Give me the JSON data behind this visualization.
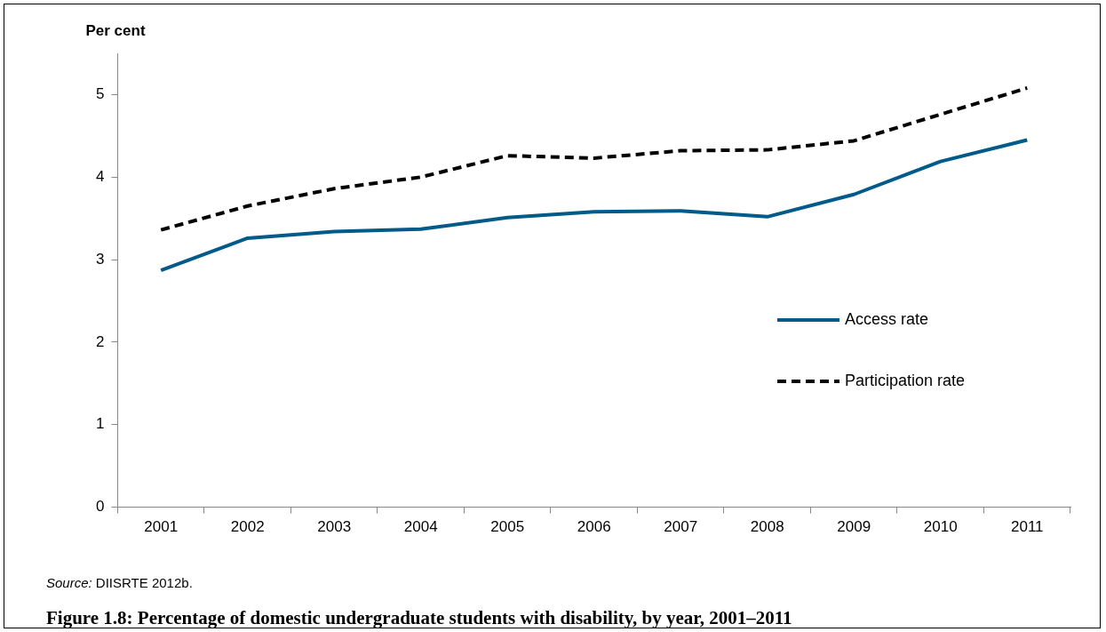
{
  "chart_data": {
    "type": "line",
    "ylabel": "Per cent",
    "title": "Figure 1.8: Percentage of domestic undergraduate students with disability, by year, 2001–2011",
    "annotations": [
      "Source: DIISRTE 2012b."
    ],
    "categories": [
      "2001",
      "2002",
      "2003",
      "2004",
      "2005",
      "2006",
      "2007",
      "2008",
      "2009",
      "2010",
      "2011"
    ],
    "ylim": [
      0,
      5.5
    ],
    "yticks": [
      0,
      1,
      2,
      3,
      4,
      5
    ],
    "grid": false,
    "legend": "right",
    "marker": "none",
    "series": [
      {
        "name": "Access rate",
        "color": "#005b8a",
        "line_style": "solid",
        "values": [
          2.87,
          3.26,
          3.34,
          3.37,
          3.51,
          3.58,
          3.59,
          3.52,
          3.79,
          4.19,
          4.45
        ]
      },
      {
        "name": "Participation rate",
        "color": "#000000",
        "line_style": "dashed",
        "values": [
          3.36,
          3.65,
          3.86,
          4.0,
          4.26,
          4.23,
          4.32,
          4.33,
          4.44,
          4.76,
          5.08
        ]
      }
    ]
  }
}
